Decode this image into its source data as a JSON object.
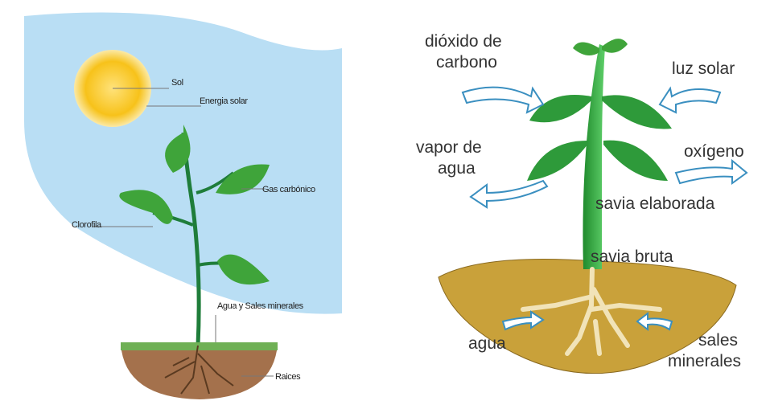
{
  "left": {
    "labels": [
      "Sol",
      "Energia solar",
      "Gas carbónico",
      "Clorofila",
      "Agua y Sales minerales",
      "Raices"
    ]
  },
  "right": {
    "labels": [
      {
        "lines": [
          "dióxido de",
          "carbono"
        ]
      },
      {
        "lines": [
          "luz solar"
        ]
      },
      {
        "lines": [
          "vapor de",
          "agua"
        ]
      },
      {
        "lines": [
          "oxígeno"
        ]
      },
      {
        "lines": [
          "savia elaborada"
        ]
      },
      {
        "lines": [
          "savia bruta"
        ]
      },
      {
        "lines": [
          "agua"
        ]
      },
      {
        "lines": [
          "sales",
          "minerales"
        ]
      }
    ]
  }
}
